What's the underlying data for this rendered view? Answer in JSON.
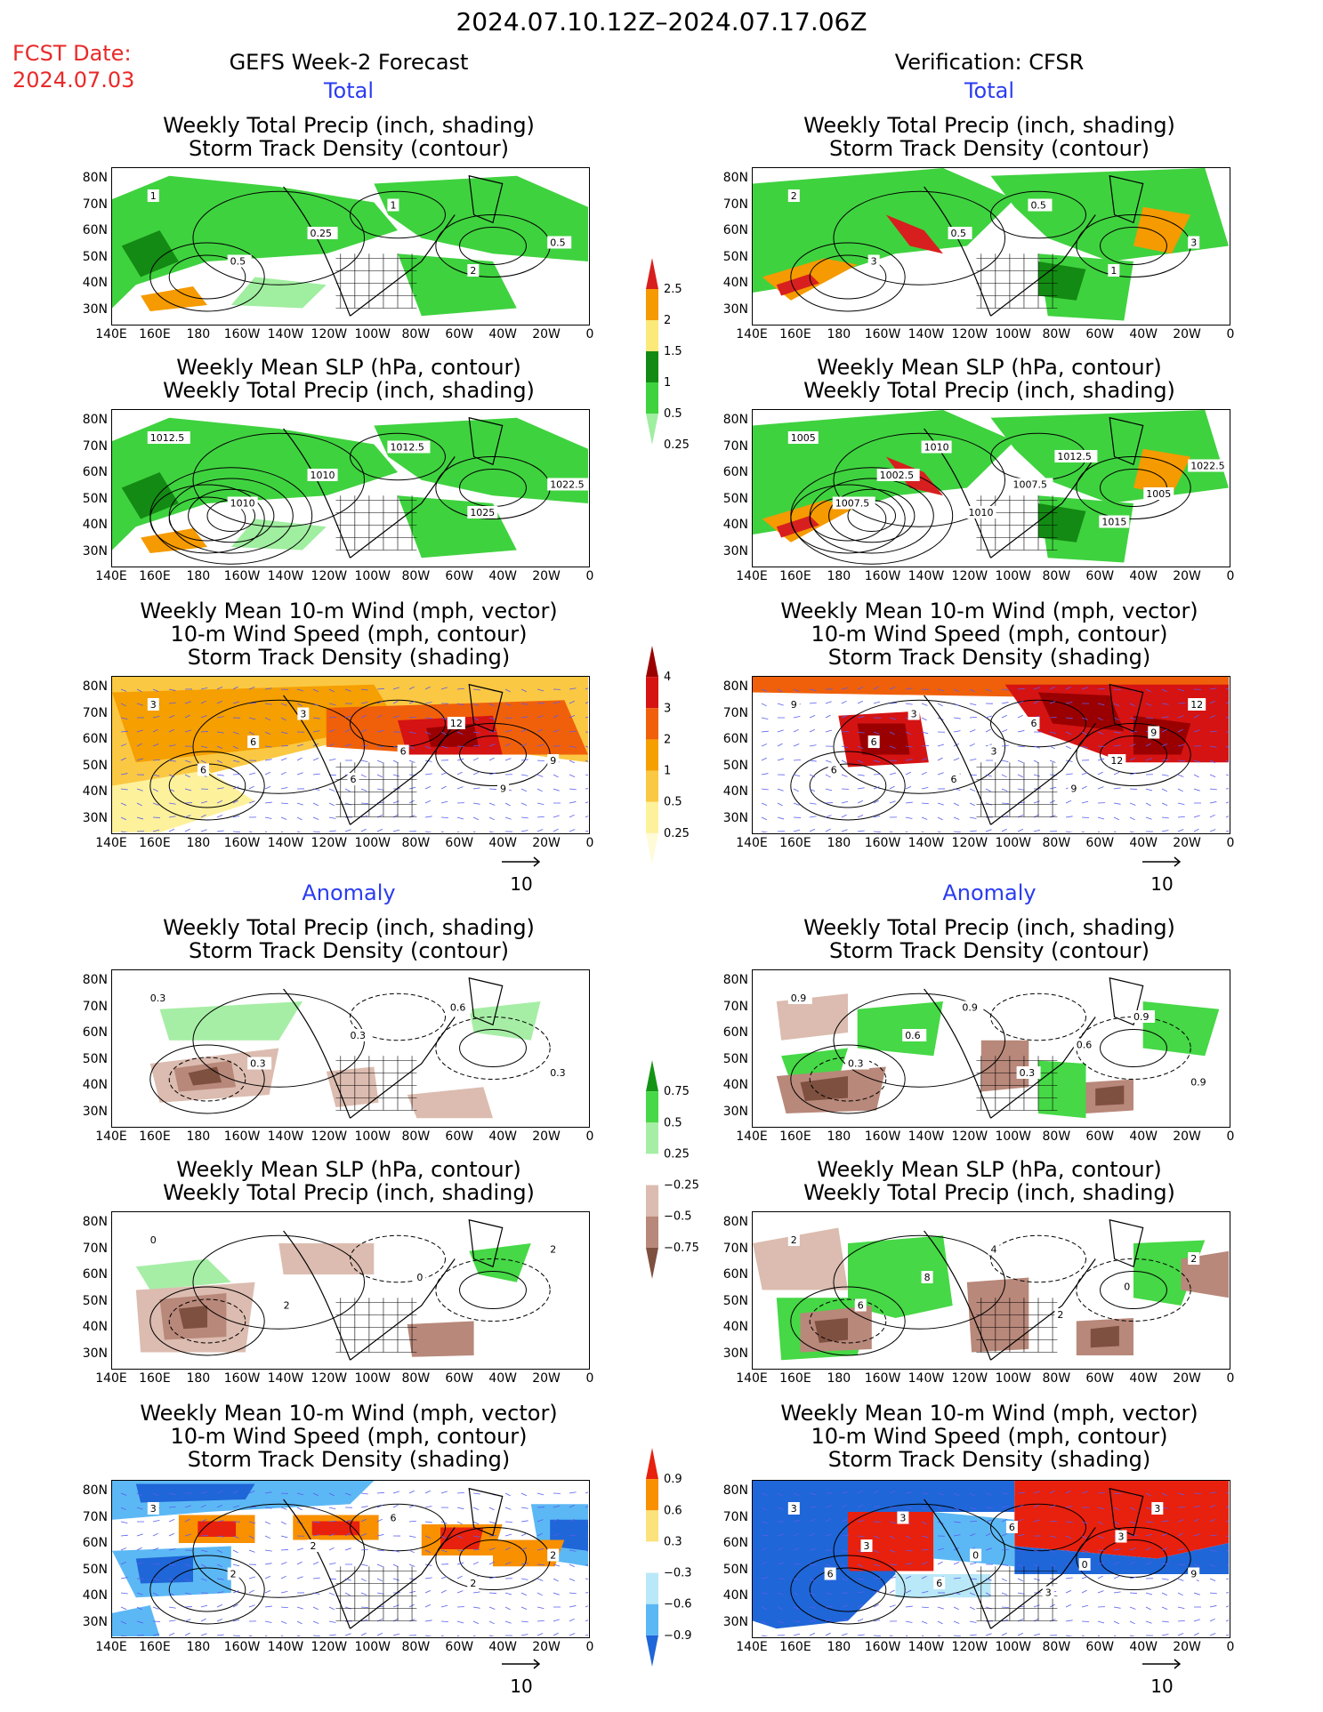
{
  "title": "2024.07.10.12Z–2024.07.17.06Z",
  "fcst_label": "FCST Date:",
  "fcst_date": "2024.07.03",
  "left_header": "GEFS Week-2 Forecast",
  "right_header": "Verification: CFSR",
  "section_total": "Total",
  "section_anomaly": "Anomaly",
  "panel_titles": {
    "precip_storm": "Weekly Total Precip (inch, shading)\nStorm Track Density (contour)",
    "slp_precip": "Weekly Mean SLP (hPa, contour)\nWeekly Total Precip (inch, shading)",
    "wind_storm": "Weekly Mean 10-m Wind (mph, vector)\n10-m Wind Speed (mph, contour)\nStorm Track Density (shading)"
  },
  "lat_labels": [
    "80N",
    "70N",
    "60N",
    "50N",
    "40N",
    "30N"
  ],
  "lon_labels": [
    "140E",
    "160E",
    "180",
    "160W",
    "140W",
    "120W",
    "100W",
    "80W",
    "60W",
    "40W",
    "20W",
    "0"
  ],
  "vector_ref": "10",
  "colorbars": {
    "precip_total": {
      "labels": [
        "2.5",
        "2",
        "1.5",
        "1",
        "0.5",
        "0.25"
      ],
      "colors": [
        "#d81f1f",
        "#f59a00",
        "#fbe97a",
        "#138a13",
        "#3fd23f",
        "#a0eea0"
      ]
    },
    "storm_total": {
      "labels": [
        "4",
        "3",
        "2",
        "1",
        "0.5",
        "0.25"
      ],
      "colors": [
        "#9b0000",
        "#d51313",
        "#f0600a",
        "#f59f00",
        "#fbc843",
        "#fdf19c",
        "#fffbd8"
      ]
    },
    "precip_anom": {
      "labels": [
        "0.75",
        "0.5",
        "0.25",
        "−0.25",
        "−0.5",
        "−0.75"
      ],
      "colors": [
        "#149414",
        "#46d846",
        "#a6eea6",
        "#ffffff",
        "#dcbcb0",
        "#b8887a",
        "#7e5040"
      ]
    },
    "storm_anom": {
      "labels": [
        "0.9",
        "0.6",
        "0.3",
        "−0.3",
        "−0.6",
        "−0.9"
      ],
      "colors": [
        "#e8200e",
        "#f89000",
        "#fbe27a",
        "#ffffff",
        "#b9e8f8",
        "#5cb8f4",
        "#1f66d8"
      ]
    }
  },
  "contour_labels": {
    "gefs_precip_total": [
      "1",
      "0.5",
      "0.25",
      "1",
      "2",
      "0.5"
    ],
    "cfsr_precip_total": [
      "2",
      "3",
      "0.5",
      "0.5",
      "1",
      "3"
    ],
    "gefs_slp_total": [
      "1012.5",
      "1010",
      "1010",
      "1012.5",
      "1025",
      "1022.5"
    ],
    "cfsr_slp_total": [
      "1005",
      "1007.5",
      "1002.5",
      "1010",
      "1010",
      "1007.5",
      "1012.5",
      "1015",
      "1005",
      "1022.5"
    ],
    "gefs_wind_total": [
      "3",
      "6",
      "6",
      "3",
      "6",
      "6",
      "12",
      "9",
      "9"
    ],
    "cfsr_wind_total": [
      "9",
      "6",
      "6",
      "3",
      "6",
      "3",
      "6",
      "9",
      "12",
      "9",
      "12"
    ],
    "gefs_precip_anom": [
      "0.3",
      "0.3",
      "0.3",
      "0.6",
      "0.3"
    ],
    "cfsr_precip_anom": [
      "0.9",
      "0.3",
      "0.6",
      "0.9",
      "0.3",
      "0.6",
      "0.9",
      "0.9"
    ],
    "gefs_slp_anom": [
      "0",
      "2",
      "0",
      "2"
    ],
    "cfsr_slp_anom": [
      "2",
      "6",
      "8",
      "4",
      "2",
      "0",
      "2"
    ],
    "gefs_wind_anom": [
      "3",
      "2",
      "2",
      "6",
      "2",
      "2"
    ],
    "cfsr_wind_anom": [
      "3",
      "6",
      "3",
      "3",
      "6",
      "0",
      "6",
      "3",
      "0",
      "3",
      "3",
      "9"
    ]
  }
}
